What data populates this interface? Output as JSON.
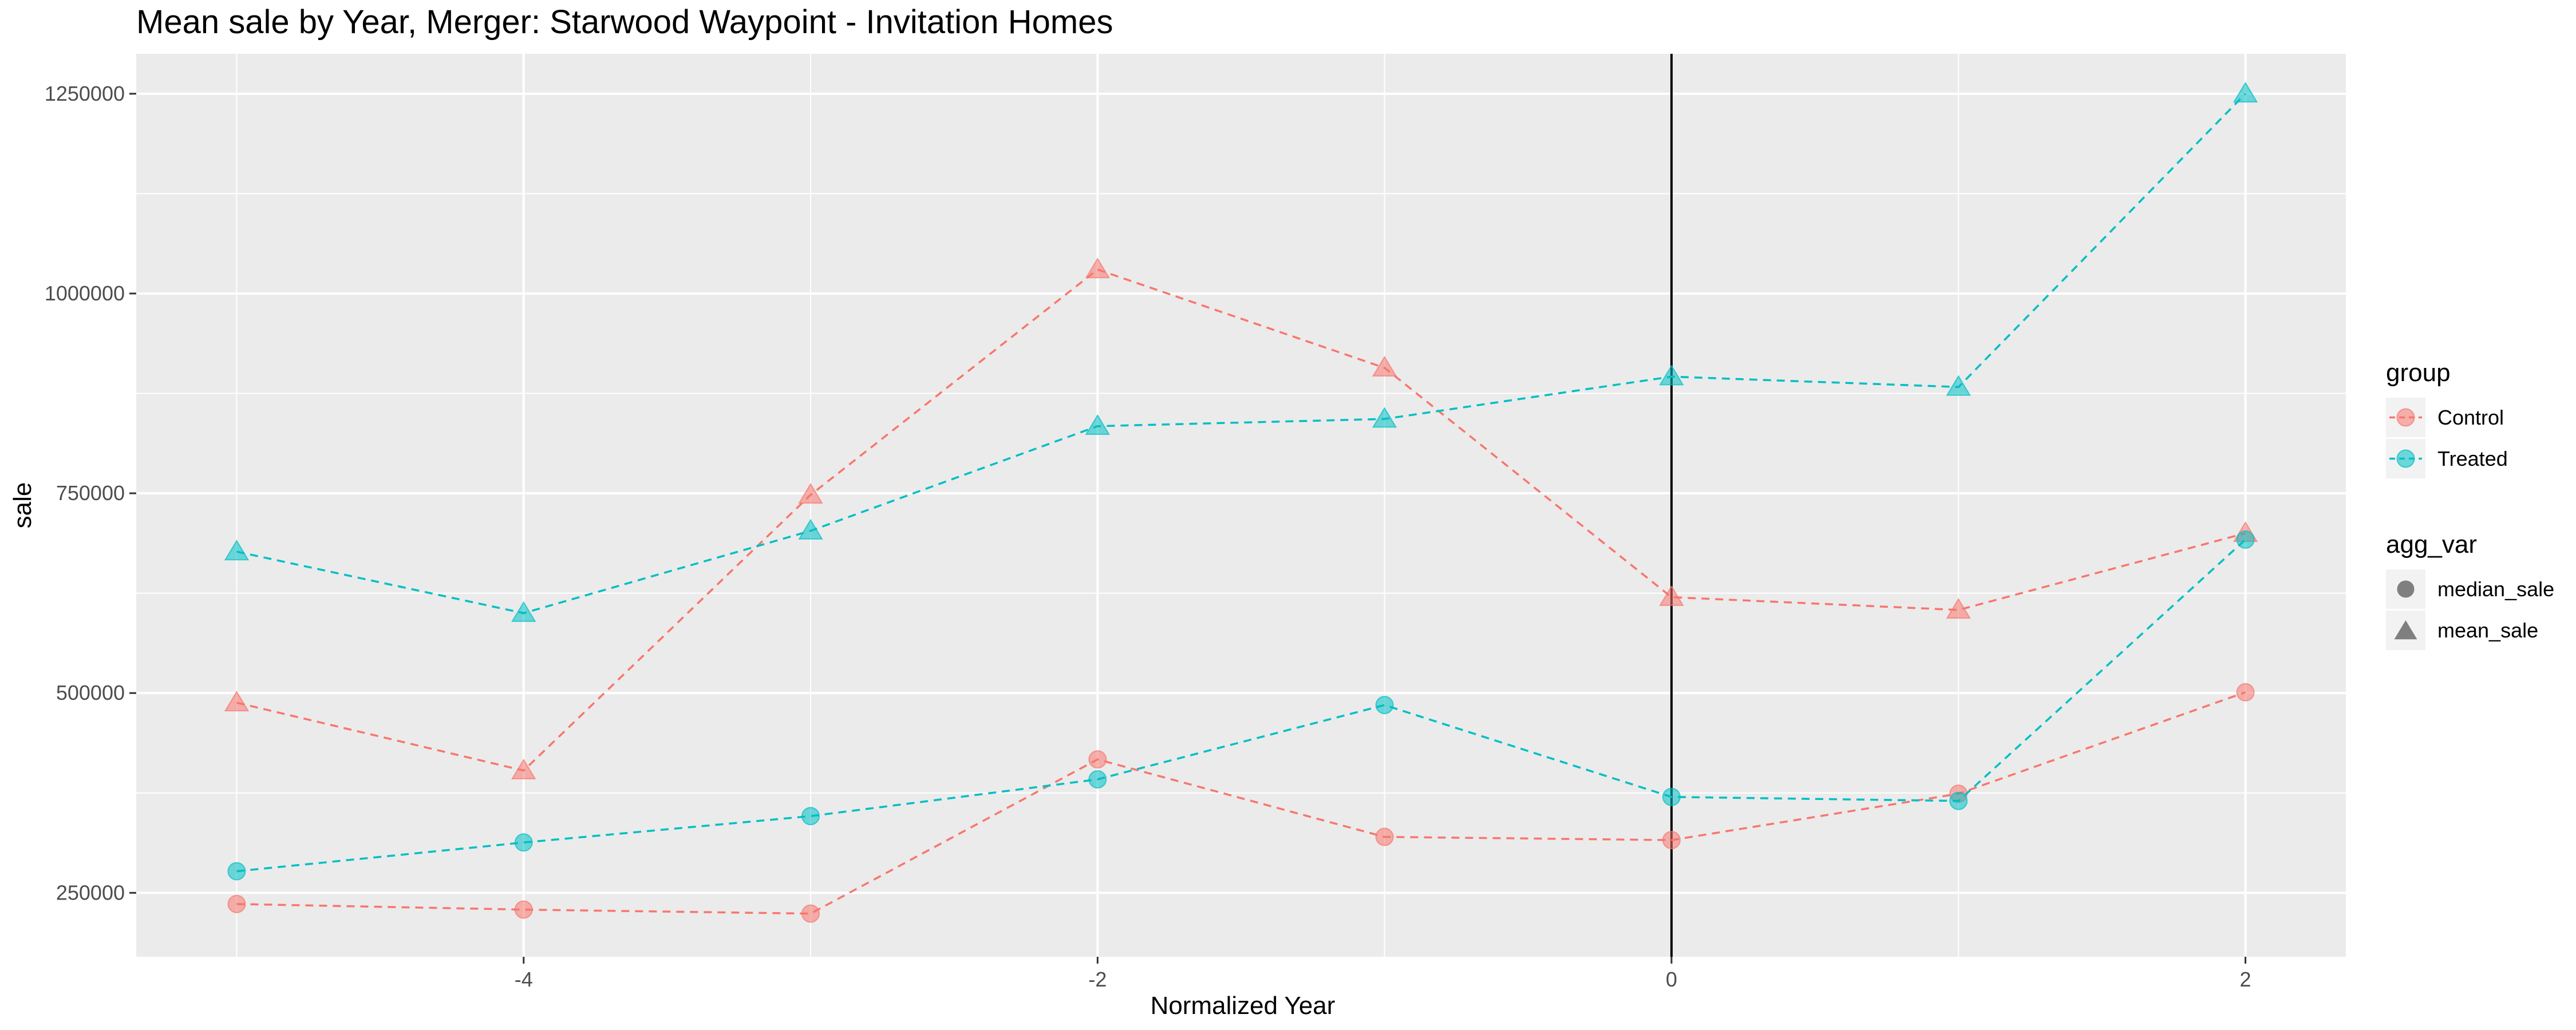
{
  "chart_data": {
    "type": "line",
    "title": "Mean sale by Year, Merger: Starwood Waypoint - Invitation Homes",
    "xlabel": "Normalized Year",
    "ylabel": "sale",
    "xlim": [
      -5.35,
      2.35
    ],
    "ylim": [
      170000,
      1300000
    ],
    "x_ticks": [
      -4,
      -2,
      0,
      2
    ],
    "x_tick_labels": [
      "-4",
      "-2",
      "0",
      "2"
    ],
    "y_ticks": [
      250000,
      500000,
      750000,
      1000000,
      1250000
    ],
    "y_tick_labels": [
      "250000",
      "500000",
      "750000",
      "1000000",
      "1250000"
    ],
    "vline_x": 0,
    "grid": true,
    "legend_position": "right",
    "x": [
      -5,
      -4,
      -3,
      -2,
      -1,
      0,
      1,
      2
    ],
    "series": [
      {
        "group": "Control",
        "agg_var": "mean_sale",
        "shape": "triangle",
        "color": "#F8766D",
        "values": [
          488000,
          403000,
          748000,
          1030000,
          907000,
          620000,
          604000,
          700000
        ]
      },
      {
        "group": "Control",
        "agg_var": "median_sale",
        "shape": "circle",
        "color": "#F8766D",
        "values": [
          236000,
          229000,
          224000,
          417000,
          320000,
          316000,
          374000,
          501000
        ]
      },
      {
        "group": "Treated",
        "agg_var": "mean_sale",
        "shape": "triangle",
        "color": "#00BFC4",
        "values": [
          677000,
          600000,
          703000,
          834000,
          843000,
          896000,
          883000,
          1250000
        ]
      },
      {
        "group": "Treated",
        "agg_var": "median_sale",
        "shape": "circle",
        "color": "#00BFC4",
        "values": [
          277000,
          313000,
          346000,
          392000,
          485000,
          370000,
          365000,
          692000
        ]
      }
    ],
    "legend": {
      "group": {
        "title": "group",
        "items": [
          {
            "label": "Control",
            "color": "#F8766D"
          },
          {
            "label": "Treated",
            "color": "#00BFC4"
          }
        ]
      },
      "agg_var": {
        "title": "agg_var",
        "items": [
          {
            "label": "median_sale",
            "shape": "circle"
          },
          {
            "label": "mean_sale",
            "shape": "triangle"
          }
        ]
      }
    },
    "colors": {
      "panel_bg": "#EBEBEB",
      "grid": "#FFFFFF",
      "vline": "#000000",
      "legend_key_bg": "#F2F2F2",
      "neutral_shape": "#7F7F7F"
    }
  }
}
